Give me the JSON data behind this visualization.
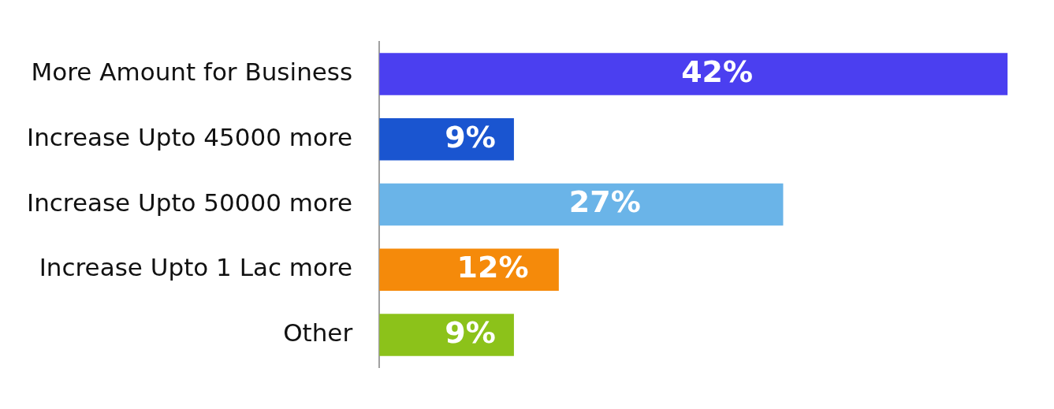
{
  "chart_data": {
    "type": "bar",
    "orientation": "horizontal",
    "tick_labels": "y",
    "legend": false,
    "categories": [
      "More Amount for Business",
      "Increase Upto 45000 more",
      "Increase Upto 50000 more",
      "Increase Upto 1 Lac more",
      "Other"
    ],
    "values": [
      42,
      9,
      27,
      12,
      9
    ],
    "colors": [
      "#4b3ff0",
      "#1a55d0",
      "#6ab4e8",
      "#f58a0a",
      "#8cc21a"
    ],
    "value_labels": [
      "42%",
      "9%",
      "27%",
      "12%",
      "9%"
    ]
  }
}
